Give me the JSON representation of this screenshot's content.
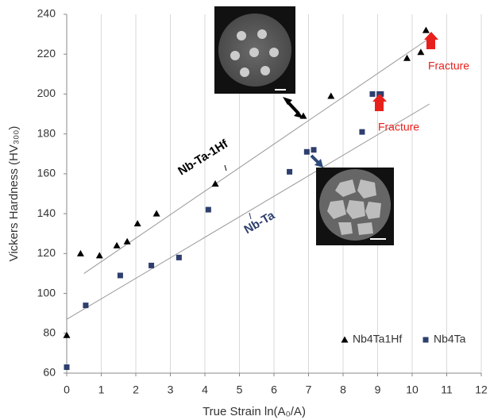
{
  "chart_data": {
    "type": "scatter",
    "x_label": "True Strain ln(A₀/A)",
    "y_label": "Vickers Hardness (HV₃₀₀)",
    "xlim": [
      0,
      12
    ],
    "xticks": [
      0,
      1,
      2,
      3,
      4,
      5,
      6,
      7,
      8,
      9,
      10,
      11,
      12
    ],
    "ylim": [
      60,
      240
    ],
    "yticks": [
      60,
      80,
      100,
      120,
      140,
      160,
      180,
      200,
      220,
      240
    ],
    "grid": "x",
    "legend": "lower right",
    "series": [
      {
        "name": "Nb4Ta1Hf",
        "marker": "triangle",
        "color": "#000000",
        "x": [
          0,
          0.4,
          0.95,
          1.45,
          1.75,
          2.05,
          2.6,
          4.3,
          6.85,
          7.65,
          9.85,
          10.25,
          10.4
        ],
        "values": [
          79,
          120,
          119,
          124,
          126,
          135,
          140,
          155,
          189,
          199,
          218,
          221,
          232
        ]
      },
      {
        "name": "Nb4Ta",
        "marker": "square",
        "color": "#2e3f6e",
        "x": [
          0,
          0.55,
          1.55,
          2.45,
          3.25,
          4.1,
          6.45,
          6.95,
          7.15,
          8.55,
          8.85,
          9.05,
          9.1
        ],
        "values": [
          63,
          94,
          109,
          114,
          118,
          142,
          161,
          171,
          172,
          181,
          200,
          200,
          200
        ]
      }
    ],
    "trendlines": [
      {
        "color": "#999999",
        "x": [
          0.5,
          10.5
        ],
        "values": [
          110,
          228
        ]
      },
      {
        "color": "#999999",
        "x": [
          0,
          10.5
        ],
        "values": [
          87,
          195
        ]
      }
    ],
    "annotations": [
      {
        "text": "Nb-Ta-1Hf",
        "color": "#000000"
      },
      {
        "text": "Nb-Ta",
        "color": "#2e3f6e"
      },
      {
        "text": "Fracture",
        "color": "#e8201c"
      },
      {
        "text": "Fracture",
        "color": "#e8201c"
      }
    ]
  }
}
